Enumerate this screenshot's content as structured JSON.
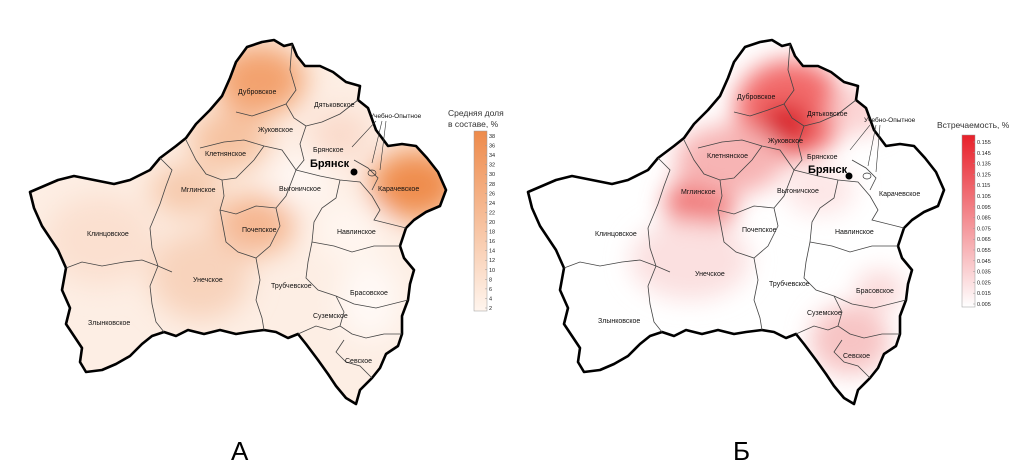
{
  "panels": [
    {
      "letter": "А",
      "legend_title_lines": [
        "Средняя доля",
        "в составе, %"
      ],
      "legend_ticks": [
        "38",
        "36",
        "34",
        "32",
        "30",
        "28",
        "26",
        "24",
        "22",
        "20",
        "18",
        "16",
        "14",
        "12",
        "10",
        "8",
        "6",
        "4",
        "2"
      ],
      "scale_colors": [
        "#fff5ee",
        "#ee8a4a"
      ]
    },
    {
      "letter": "Б",
      "legend_title_lines": [
        "Встречаемость, %"
      ],
      "legend_ticks": [
        "0.155",
        "0.145",
        "0.135",
        "0.125",
        "0.115",
        "0.105",
        "0.095",
        "0.085",
        "0.075",
        "0.065",
        "0.055",
        "0.045",
        "0.035",
        "0.025",
        "0.015",
        "0.005"
      ],
      "scale_colors": [
        "#ffffff",
        "#e8202a"
      ]
    }
  ],
  "city": "Брянск",
  "special_label": "Учебно-Опытное",
  "districts": {
    "dubrovskoe": "Дубровское",
    "dyatkovskoe": "Дятьковское",
    "zhukovskoe": "Жуковское",
    "kletnyanskoe": "Клетнянское",
    "bryanskoe": "Брянское",
    "mglinskoe": "Мглинское",
    "vygonichskoe": "Выгоничское",
    "karachevskoe": "Карачевское",
    "klintsovskoe": "Клинцовское",
    "pochepskoe": "Почепское",
    "navlinskoe": "Навлинское",
    "unechskoe": "Унечское",
    "trubchevskoe": "Трубчевское",
    "brasovskoe": "Брасовское",
    "zlynkovskoe": "Злынковское",
    "suzemskoe": "Суземское",
    "sevskoe": "Севское"
  }
}
